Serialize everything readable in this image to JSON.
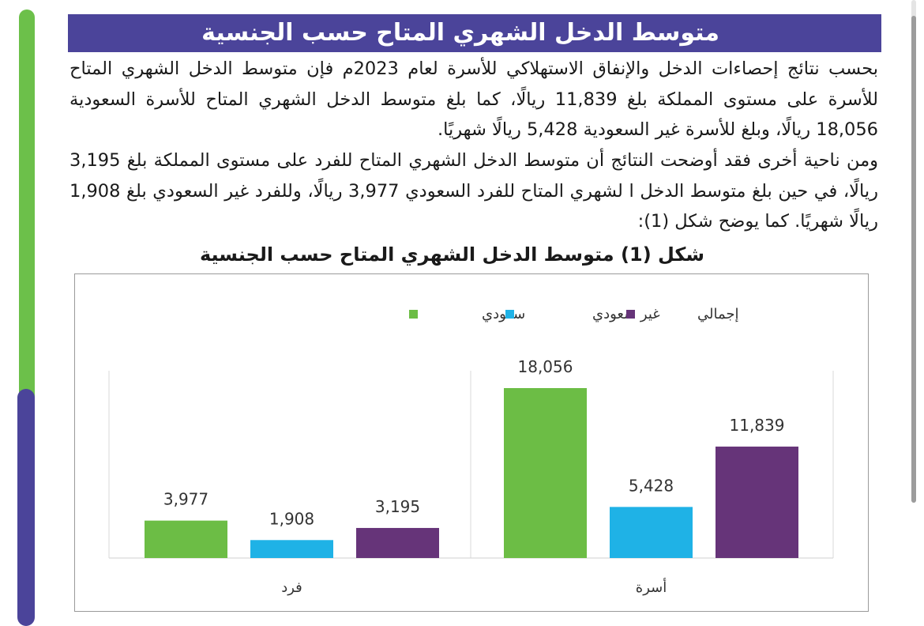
{
  "banner": {
    "title": "متوسط الدخل الشهري المتاح حسب الجنسية"
  },
  "paragraphs": [
    "بحسب نتائج إحصاءات الدخل والإنفاق الاستهلاكي للأسرة لعام 2023م فإن متوسط الدخل الشهري المتاح للأسرة على مستوى المملكة بلغ 11,839 ريالًا، كما بلغ متوسط الدخل الشهري المتاح للأسرة السعودية 18,056 ريالًا، وبلغ للأسرة غير السعودية 5,428 ريالًا شهريًا.",
    "ومن ناحية أخرى فقد أوضحت النتائج أن متوسط الدخل الشهري المتاح للفرد على مستوى المملكة بلغ 3,195 ريالًا، في حين بلغ متوسط الدخل ا لشهري المتاح للفرد السعودي 3,977 ريالًا، وللفرد غير السعودي بلغ 1,908 ريالًا شهريًا.  كما يوضح شكل (1):"
  ],
  "figure": {
    "title": "شكل (1) متوسط الدخل الشهري المتاح حسب الجنسية"
  },
  "chart_data": {
    "type": "bar",
    "title": "شكل (1) متوسط الدخل الشهري المتاح حسب الجنسية",
    "categories": [
      "فرد",
      "أسرة"
    ],
    "series": [
      {
        "name": "سعودي",
        "color": "#6cbd45",
        "values": [
          3977,
          18056
        ],
        "labels": [
          "3,977",
          "18,056"
        ]
      },
      {
        "name": "غير سعودي",
        "color": "#1fb2e6",
        "values": [
          1908,
          5428
        ],
        "labels": [
          "1,908",
          "5,428"
        ]
      },
      {
        "name": "إجمالي",
        "color": "#663479",
        "values": [
          3195,
          11839
        ],
        "labels": [
          "3,195",
          "11,839"
        ]
      }
    ],
    "legend_order": [
      "سعودي",
      "غير سعودي",
      "إجمالي"
    ],
    "legend_position": "top",
    "ylim": [
      0,
      20000
    ],
    "grid": false,
    "xlabel": "",
    "ylabel": ""
  }
}
